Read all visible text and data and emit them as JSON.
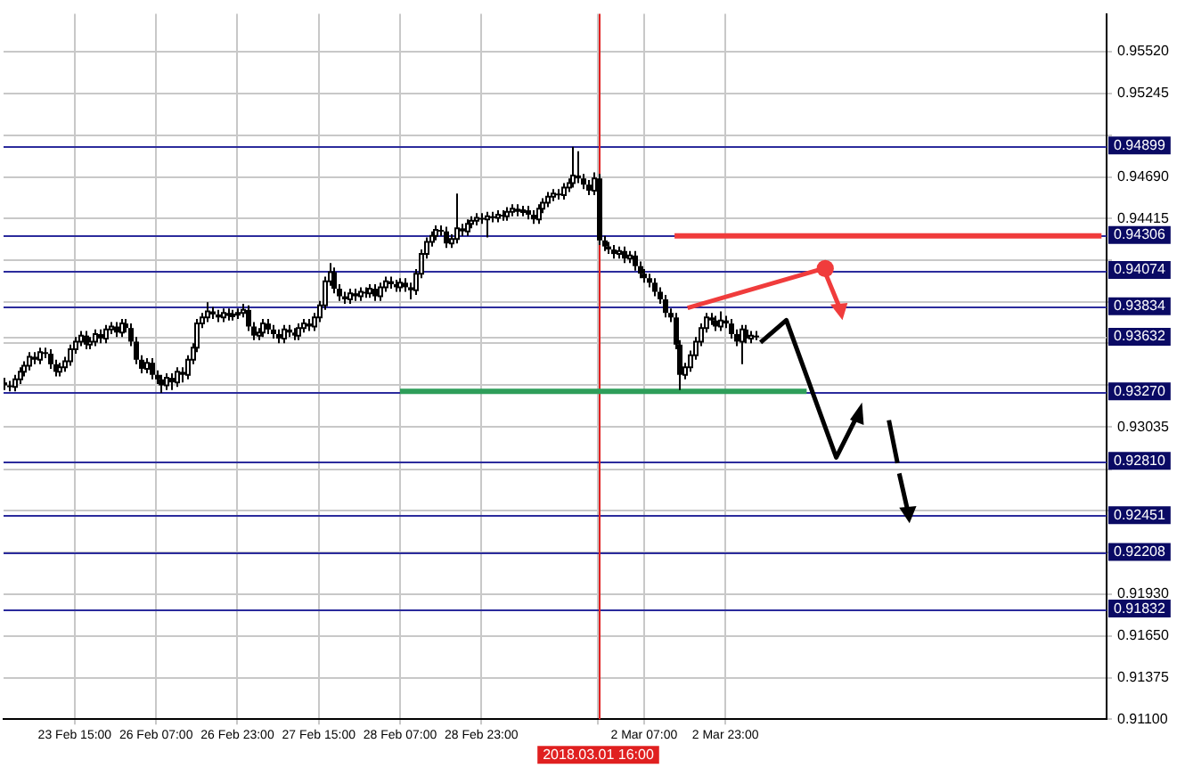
{
  "chart_data": {
    "type": "candlestick",
    "categories": [
      null,
      null,
      null,
      null,
      null,
      null,
      null,
      null,
      null,
      null,
      null,
      null,
      null,
      null,
      "23 Feb 15:00",
      null,
      null,
      null,
      null,
      null,
      null,
      null,
      null,
      null,
      null,
      null,
      null,
      null,
      null,
      null,
      "26 Feb 07:00",
      null,
      null,
      null,
      null,
      null,
      null,
      null,
      null,
      null,
      null,
      null,
      null,
      null,
      null,
      null,
      "26 Feb 23:00",
      null,
      null,
      null,
      null,
      null,
      null,
      null,
      null,
      null,
      null,
      null,
      null,
      null,
      null,
      null,
      "27 Feb 15:00",
      null,
      null,
      null,
      null,
      null,
      null,
      null,
      null,
      null,
      null,
      null,
      null,
      null,
      null,
      null,
      "28 Feb 07:00",
      null,
      null,
      null,
      null,
      null,
      null,
      null,
      null,
      null,
      null,
      null,
      null,
      null,
      null,
      null,
      "28 Feb 23:00",
      null,
      null,
      null,
      null,
      null,
      null,
      null,
      null,
      null,
      null,
      null,
      null,
      null,
      null,
      null,
      null,
      null,
      null,
      null,
      null,
      null,
      null,
      "2018.03.01 16:00",
      null,
      null,
      null,
      null,
      null,
      null,
      null,
      null,
      "2 Mar 07:00",
      null,
      null,
      null,
      null,
      null,
      null,
      null,
      null,
      null,
      null,
      null,
      null,
      null,
      null,
      null,
      "2 Mar 23:00",
      null,
      null,
      null,
      null,
      null,
      null,
      null,
      null,
      null,
      null,
      null,
      null,
      null,
      null,
      null,
      null,
      null,
      null,
      null,
      null,
      null,
      null,
      null,
      null,
      null,
      null,
      null,
      null,
      null,
      null,
      null,
      null,
      null,
      null,
      null,
      null,
      null,
      null,
      null,
      null,
      null,
      null,
      null,
      null,
      null,
      null,
      null,
      null,
      null,
      null,
      null,
      null,
      null,
      null,
      null,
      null,
      null,
      null,
      null,
      null,
      null,
      null,
      null,
      null,
      null,
      null,
      null,
      null,
      null,
      null,
      null,
      null,
      null,
      null,
      null
    ],
    "ohlc": [
      [
        0.9333,
        0.9336,
        0.9328,
        0.9331
      ],
      [
        0.9331,
        0.9334,
        0.9327,
        0.933
      ],
      [
        0.933,
        0.9338,
        0.9327,
        0.9335
      ],
      [
        0.9335,
        0.9343,
        0.9332,
        0.934
      ],
      [
        0.934,
        0.9347,
        0.9337,
        0.9344
      ],
      [
        0.9344,
        0.9353,
        0.9341,
        0.935
      ],
      [
        0.935,
        0.9353,
        0.9345,
        0.9348
      ],
      [
        0.9348,
        0.9356,
        0.9345,
        0.9353
      ],
      [
        0.9353,
        0.9356,
        0.9349,
        0.9352
      ],
      [
        0.9352,
        0.9355,
        0.9342,
        0.9345
      ],
      [
        0.9345,
        0.9348,
        0.9337,
        0.934
      ],
      [
        0.934,
        0.9346,
        0.9337,
        0.9343
      ],
      [
        0.9343,
        0.935,
        0.934,
        0.9347
      ],
      [
        0.9347,
        0.9358,
        0.9344,
        0.9355
      ],
      [
        0.9355,
        0.9363,
        0.9352,
        0.936
      ],
      [
        0.936,
        0.9367,
        0.9357,
        0.9364
      ],
      [
        0.9364,
        0.9367,
        0.9355,
        0.9358
      ],
      [
        0.9358,
        0.9363,
        0.9355,
        0.936
      ],
      [
        0.936,
        0.9368,
        0.9357,
        0.9365
      ],
      [
        0.9365,
        0.9368,
        0.9359,
        0.9362
      ],
      [
        0.9362,
        0.9371,
        0.9359,
        0.9368
      ],
      [
        0.9368,
        0.9373,
        0.9365,
        0.937
      ],
      [
        0.937,
        0.9373,
        0.9363,
        0.9366
      ],
      [
        0.9366,
        0.9375,
        0.9363,
        0.9372
      ],
      [
        0.9372,
        0.9375,
        0.9366,
        0.9369
      ],
      [
        0.9369,
        0.9372,
        0.9357,
        0.936
      ],
      [
        0.936,
        0.9363,
        0.9345,
        0.9348
      ],
      [
        0.9348,
        0.9351,
        0.9339,
        0.9342
      ],
      [
        0.9342,
        0.9349,
        0.9339,
        0.9346
      ],
      [
        0.9346,
        0.9349,
        0.9335,
        0.9338
      ],
      [
        0.9338,
        0.9341,
        0.9332,
        0.9335
      ],
      [
        0.9335,
        0.9338,
        0.9326,
        0.9331
      ],
      [
        0.9331,
        0.9339,
        0.9328,
        0.9336
      ],
      [
        0.9336,
        0.9339,
        0.9328,
        0.9333
      ],
      [
        0.9333,
        0.9343,
        0.933,
        0.934
      ],
      [
        0.934,
        0.9343,
        0.9333,
        0.9338
      ],
      [
        0.9338,
        0.9351,
        0.9335,
        0.9348
      ],
      [
        0.9348,
        0.9359,
        0.9345,
        0.9356
      ],
      [
        0.9356,
        0.9375,
        0.9353,
        0.9372
      ],
      [
        0.9372,
        0.9379,
        0.9369,
        0.9376
      ],
      [
        0.9376,
        0.9386,
        0.9373,
        0.938
      ],
      [
        0.938,
        0.9383,
        0.9375,
        0.9378
      ],
      [
        0.9378,
        0.9381,
        0.9373,
        0.9376
      ],
      [
        0.9376,
        0.9382,
        0.9373,
        0.9379
      ],
      [
        0.9379,
        0.9382,
        0.9374,
        0.9377
      ],
      [
        0.9377,
        0.9381,
        0.9374,
        0.9378
      ],
      [
        0.9378,
        0.9382,
        0.9375,
        0.9379
      ],
      [
        0.9379,
        0.9385,
        0.9376,
        0.9381
      ],
      [
        0.9381,
        0.9384,
        0.9367,
        0.937
      ],
      [
        0.937,
        0.9373,
        0.9361,
        0.9364
      ],
      [
        0.9364,
        0.9369,
        0.9361,
        0.9366
      ],
      [
        0.9366,
        0.9375,
        0.9363,
        0.9372
      ],
      [
        0.9372,
        0.9375,
        0.9365,
        0.9368
      ],
      [
        0.9368,
        0.9371,
        0.9362,
        0.9365
      ],
      [
        0.9365,
        0.9368,
        0.9359,
        0.9362
      ],
      [
        0.9362,
        0.9371,
        0.9359,
        0.9368
      ],
      [
        0.9368,
        0.9371,
        0.9363,
        0.9366
      ],
      [
        0.9366,
        0.9369,
        0.9361,
        0.9364
      ],
      [
        0.9364,
        0.9372,
        0.9361,
        0.9369
      ],
      [
        0.9369,
        0.9375,
        0.9366,
        0.9372
      ],
      [
        0.9372,
        0.9375,
        0.9367,
        0.937
      ],
      [
        0.937,
        0.9379,
        0.9367,
        0.9376
      ],
      [
        0.9376,
        0.9387,
        0.9373,
        0.9384
      ],
      [
        0.9384,
        0.9403,
        0.9381,
        0.94
      ],
      [
        0.94,
        0.9412,
        0.9397,
        0.9406
      ],
      [
        0.9406,
        0.9409,
        0.9392,
        0.9395
      ],
      [
        0.9395,
        0.9398,
        0.9387,
        0.939
      ],
      [
        0.939,
        0.9393,
        0.9385,
        0.9388
      ],
      [
        0.9388,
        0.9395,
        0.9385,
        0.9392
      ],
      [
        0.9392,
        0.9395,
        0.9387,
        0.939
      ],
      [
        0.939,
        0.9396,
        0.9387,
        0.9393
      ],
      [
        0.9393,
        0.9396,
        0.9389,
        0.9392
      ],
      [
        0.9392,
        0.9398,
        0.9389,
        0.9395
      ],
      [
        0.9395,
        0.9398,
        0.9387,
        0.939
      ],
      [
        0.939,
        0.9399,
        0.9387,
        0.9396
      ],
      [
        0.9396,
        0.9403,
        0.9393,
        0.94
      ],
      [
        0.94,
        0.9403,
        0.9395,
        0.9398
      ],
      [
        0.9398,
        0.9401,
        0.9393,
        0.9396
      ],
      [
        0.9396,
        0.9402,
        0.9393,
        0.9399
      ],
      [
        0.9399,
        0.9402,
        0.9393,
        0.9396
      ],
      [
        0.9396,
        0.9399,
        0.9388,
        0.9394
      ],
      [
        0.9394,
        0.9408,
        0.9391,
        0.9405
      ],
      [
        0.9405,
        0.9421,
        0.9402,
        0.9418
      ],
      [
        0.9418,
        0.9429,
        0.9415,
        0.9426
      ],
      [
        0.9426,
        0.9433,
        0.9423,
        0.943
      ],
      [
        0.943,
        0.9437,
        0.9427,
        0.9434
      ],
      [
        0.9434,
        0.9437,
        0.943,
        0.9433
      ],
      [
        0.9433,
        0.9436,
        0.9422,
        0.9425
      ],
      [
        0.9425,
        0.9431,
        0.9422,
        0.9428
      ],
      [
        0.9428,
        0.9458,
        0.9425,
        0.9435
      ],
      [
        0.9435,
        0.9438,
        0.943,
        0.9433
      ],
      [
        0.9433,
        0.9441,
        0.943,
        0.9438
      ],
      [
        0.9438,
        0.9443,
        0.9435,
        0.944
      ],
      [
        0.944,
        0.9445,
        0.9437,
        0.9442
      ],
      [
        0.9442,
        0.9445,
        0.9438,
        0.9441
      ],
      [
        0.9441,
        0.9446,
        0.9429,
        0.9443
      ],
      [
        0.9443,
        0.9446,
        0.9439,
        0.9442
      ],
      [
        0.9442,
        0.9447,
        0.9439,
        0.9444
      ],
      [
        0.9444,
        0.9447,
        0.944,
        0.9443
      ],
      [
        0.9443,
        0.9449,
        0.944,
        0.9446
      ],
      [
        0.9446,
        0.9451,
        0.9443,
        0.9448
      ],
      [
        0.9448,
        0.9451,
        0.9443,
        0.9446
      ],
      [
        0.9446,
        0.945,
        0.9443,
        0.9447
      ],
      [
        0.9447,
        0.945,
        0.9441,
        0.9444
      ],
      [
        0.9444,
        0.9447,
        0.9438,
        0.9441
      ],
      [
        0.9441,
        0.9451,
        0.9438,
        0.9448
      ],
      [
        0.9448,
        0.9455,
        0.9445,
        0.9452
      ],
      [
        0.9452,
        0.9459,
        0.9449,
        0.9456
      ],
      [
        0.9456,
        0.9461,
        0.9453,
        0.9458
      ],
      [
        0.9458,
        0.9461,
        0.9454,
        0.9457
      ],
      [
        0.9457,
        0.9465,
        0.9454,
        0.9462
      ],
      [
        0.9462,
        0.9468,
        0.9459,
        0.9465
      ],
      [
        0.9465,
        0.9489,
        0.9462,
        0.947
      ],
      [
        0.947,
        0.9486,
        0.9465,
        0.9468
      ],
      [
        0.9468,
        0.9471,
        0.9461,
        0.9464
      ],
      [
        0.9464,
        0.9467,
        0.9457,
        0.946
      ],
      [
        0.946,
        0.9472,
        0.9457,
        0.9468
      ],
      [
        0.9468,
        0.9471,
        0.9424,
        0.9427
      ],
      [
        0.9427,
        0.943,
        0.942,
        0.9423
      ],
      [
        0.9423,
        0.9426,
        0.9418,
        0.9421
      ],
      [
        0.9421,
        0.9424,
        0.9415,
        0.9418
      ],
      [
        0.9418,
        0.9423,
        0.9415,
        0.942
      ],
      [
        0.942,
        0.9423,
        0.9412,
        0.9415
      ],
      [
        0.9415,
        0.942,
        0.9412,
        0.9417
      ],
      [
        0.9417,
        0.942,
        0.9407,
        0.941
      ],
      [
        0.941,
        0.9413,
        0.9402,
        0.9405
      ],
      [
        0.9405,
        0.9408,
        0.9399,
        0.9402
      ],
      [
        0.9402,
        0.9405,
        0.9396,
        0.9399
      ],
      [
        0.9399,
        0.9402,
        0.939,
        0.9393
      ],
      [
        0.9393,
        0.9396,
        0.9385,
        0.9388
      ],
      [
        0.9388,
        0.9391,
        0.9376,
        0.9379
      ],
      [
        0.9379,
        0.9382,
        0.9373,
        0.9376
      ],
      [
        0.9376,
        0.9379,
        0.9355,
        0.9358
      ],
      [
        0.9358,
        0.9361,
        0.9328,
        0.9338
      ],
      [
        0.9338,
        0.9346,
        0.9335,
        0.9343
      ],
      [
        0.9343,
        0.9354,
        0.934,
        0.9351
      ],
      [
        0.9351,
        0.9363,
        0.9348,
        0.936
      ],
      [
        0.936,
        0.9372,
        0.9357,
        0.9369
      ],
      [
        0.9369,
        0.9379,
        0.9366,
        0.9376
      ],
      [
        0.9376,
        0.9379,
        0.9371,
        0.9374
      ],
      [
        0.9374,
        0.9377,
        0.9367,
        0.937
      ],
      [
        0.937,
        0.938,
        0.9367,
        0.9374
      ],
      [
        0.9374,
        0.9377,
        0.9369,
        0.9372
      ],
      [
        0.9372,
        0.9375,
        0.9362,
        0.9365
      ],
      [
        0.9365,
        0.9368,
        0.9357,
        0.936
      ],
      [
        0.936,
        0.9371,
        0.9345,
        0.9368
      ],
      [
        0.9368,
        0.9371,
        0.9359,
        0.9362
      ],
      [
        0.9362,
        0.9367,
        0.9359,
        0.9364
      ],
      [
        0.9364,
        0.9367,
        0.9361,
        0.93632
      ],
      null,
      null,
      null,
      null,
      null,
      null,
      null,
      null,
      null,
      null,
      null,
      null,
      null,
      null,
      null,
      null,
      null,
      null,
      null,
      null,
      null,
      null,
      null,
      null,
      null,
      null,
      null,
      null,
      null,
      null,
      null,
      null,
      null,
      null,
      null,
      null,
      null,
      null,
      null,
      null,
      null,
      null,
      null,
      null,
      null,
      null,
      null,
      null,
      null,
      null,
      null,
      null,
      null,
      null,
      null,
      null,
      null,
      null,
      null,
      null,
      null,
      null,
      null,
      null,
      null,
      null,
      null,
      null,
      null
    ],
    "series": [
      {
        "type": "line",
        "color": "#f03c3c",
        "values": [
          null,
          null,
          null,
          null,
          null,
          null,
          null,
          null,
          null,
          null,
          null,
          null,
          null,
          null,
          null,
          null,
          null,
          null,
          null,
          null,
          null,
          null,
          null,
          null,
          null,
          null,
          null,
          null,
          null,
          null,
          null,
          null,
          null,
          null,
          null,
          null,
          null,
          null,
          null,
          null,
          null,
          null,
          null,
          null,
          null,
          null,
          null,
          null,
          null,
          null,
          null,
          null,
          null,
          null,
          null,
          null,
          null,
          null,
          null,
          null,
          null,
          null,
          null,
          null,
          null,
          null,
          null,
          null,
          null,
          null,
          null,
          null,
          null,
          null,
          null,
          null,
          null,
          null,
          null,
          null,
          null,
          null,
          null,
          null,
          null,
          null,
          null,
          null,
          null,
          null,
          null,
          null,
          null,
          null,
          null,
          null,
          null,
          null,
          null,
          null,
          null,
          null,
          null,
          null,
          null,
          null,
          null,
          null,
          null,
          null,
          null,
          null,
          null,
          null,
          null,
          null,
          null,
          null,
          null,
          null,
          null,
          null,
          null,
          null,
          null,
          null,
          null,
          null,
          null,
          null,
          null,
          null,
          0.943,
          0.943,
          0.943,
          0.943,
          0.943,
          0.943,
          0.943,
          0.943,
          0.943,
          0.943,
          0.943,
          0.943,
          0.943,
          0.943,
          0.943,
          0.943,
          0.943,
          0.943,
          0.943,
          0.943,
          0.943,
          0.943,
          0.943,
          0.943,
          0.943,
          0.943,
          0.943,
          0.943,
          0.943,
          0.943,
          0.943,
          0.943,
          0.943,
          0.943,
          0.943,
          0.943,
          0.943,
          0.943,
          0.943,
          0.943,
          0.943,
          0.943,
          0.943,
          0.943,
          0.943,
          0.943,
          0.943,
          0.943,
          0.943,
          0.943,
          0.943,
          0.943,
          0.943,
          0.943,
          0.943,
          0.943,
          0.943,
          0.943,
          0.943,
          0.943,
          0.943,
          0.943,
          0.943,
          0.943,
          0.943,
          0.943,
          0.943,
          0.943,
          0.943,
          0.943,
          0.943,
          0.943,
          0.943,
          0.943,
          0.943,
          0.943,
          0.943,
          0.943,
          0.943,
          0.943,
          0.943,
          0.943,
          0.943,
          0.943,
          0.943,
          null
        ]
      },
      {
        "type": "line",
        "color": "#2e9e5a",
        "values": [
          null,
          null,
          null,
          null,
          null,
          null,
          null,
          null,
          null,
          null,
          null,
          null,
          null,
          null,
          null,
          null,
          null,
          null,
          null,
          null,
          null,
          null,
          null,
          null,
          null,
          null,
          null,
          null,
          null,
          null,
          null,
          null,
          null,
          null,
          null,
          null,
          null,
          null,
          null,
          null,
          null,
          null,
          null,
          null,
          null,
          null,
          null,
          null,
          null,
          null,
          null,
          null,
          null,
          null,
          null,
          null,
          null,
          null,
          null,
          null,
          null,
          null,
          null,
          null,
          null,
          null,
          null,
          null,
          null,
          null,
          null,
          null,
          null,
          null,
          null,
          null,
          null,
          null,
          0.9327,
          0.9327,
          0.9327,
          0.9327,
          0.9327,
          0.9327,
          0.9327,
          0.9327,
          0.9327,
          0.9327,
          0.9327,
          0.9327,
          0.9327,
          0.9327,
          0.9327,
          0.9327,
          0.9327,
          0.9327,
          0.9327,
          0.9327,
          0.9327,
          0.9327,
          0.9327,
          0.9327,
          0.9327,
          0.9327,
          0.9327,
          0.9327,
          0.9327,
          0.9327,
          0.9327,
          0.9327,
          0.9327,
          0.9327,
          0.9327,
          0.9327,
          0.9327,
          0.9327,
          0.9327,
          0.9327,
          0.9327,
          0.9327,
          0.9327,
          0.9327,
          0.9327,
          0.9327,
          0.9327,
          0.9327,
          0.9327,
          0.9327,
          0.9327,
          0.9327,
          0.9327,
          0.9327,
          0.9327,
          0.9327,
          0.9327,
          0.9327,
          0.9327,
          0.9327,
          0.9327,
          0.9327,
          0.9327,
          0.9327,
          0.9327,
          0.9327,
          0.9327,
          0.9327,
          0.9327,
          0.9327,
          0.9327,
          0.9327,
          0.9327,
          0.9327,
          0.9327,
          0.9327,
          0.9327,
          0.9327,
          0.9327,
          0.9327,
          0.9327,
          null,
          null,
          null,
          null,
          null,
          null,
          null,
          null,
          null,
          null,
          null,
          null,
          null,
          null,
          null,
          null,
          null,
          null,
          null,
          null,
          null,
          null,
          null,
          null,
          null,
          null,
          null,
          null,
          null,
          null,
          null,
          null,
          null,
          null,
          null,
          null,
          null,
          null,
          null,
          null,
          null,
          null,
          null,
          null,
          null,
          null,
          null,
          null,
          null,
          null,
          null,
          null,
          null,
          null,
          null,
          null,
          null,
          null,
          null
        ]
      }
    ],
    "ylim": [
      0.911,
      0.9577
    ],
    "yticks": [
      {
        "value": 0.911,
        "label": "0.91100"
      },
      {
        "value": 0.91375,
        "label": "0.91375"
      },
      {
        "value": 0.9165,
        "label": "0.91650"
      },
      {
        "value": 0.9193,
        "label": "0.91930"
      },
      {
        "value": 0.92205,
        "label": null
      },
      {
        "value": 0.9248,
        "label": null
      },
      {
        "value": 0.92755,
        "label": null
      },
      {
        "value": 0.93035,
        "label": "0.93035"
      },
      {
        "value": 0.93315,
        "label": null
      },
      {
        "value": 0.9359,
        "label": null
      },
      {
        "value": 0.93865,
        "label": null
      },
      {
        "value": 0.9414,
        "label": null
      },
      {
        "value": 0.94415,
        "label": "0.94415"
      },
      {
        "value": 0.9469,
        "label": "0.94690"
      },
      {
        "value": 0.94965,
        "label": null
      },
      {
        "value": 0.95245,
        "label": "0.95245"
      },
      {
        "value": 0.9552,
        "label": "0.95520"
      }
    ],
    "grid": true,
    "ref_lines": [
      {
        "axis": "y",
        "value": 0.94899,
        "label": "0.94899",
        "color": "#2b2b9c"
      },
      {
        "axis": "y",
        "value": 0.94306,
        "label": "0.94306",
        "color": "#2b2b9c"
      },
      {
        "axis": "y",
        "value": 0.94074,
        "label": "0.94074",
        "color": "#2b2b9c"
      },
      {
        "axis": "y",
        "value": 0.93834,
        "label": "0.93834",
        "color": "#2b2b9c"
      },
      {
        "axis": "y",
        "value": 0.93632,
        "label": "0.93632",
        "color": "#c8c8c8"
      },
      {
        "axis": "y",
        "value": 0.9327,
        "label": "0.93270",
        "color": "#2b2b9c"
      },
      {
        "axis": "y",
        "value": 0.9281,
        "label": "0.92810",
        "color": "#2b2b9c"
      },
      {
        "axis": "y",
        "value": 0.92451,
        "label": "0.92451",
        "color": "#2b2b9c"
      },
      {
        "axis": "y",
        "value": 0.92208,
        "label": "0.92208",
        "color": "#2b2b9c"
      },
      {
        "axis": "y",
        "value": 0.91832,
        "label": "0.91832",
        "color": "#2b2b9c"
      },
      {
        "axis": "x",
        "value": "2018.03.01 16:00",
        "color": "#e02020"
      }
    ]
  }
}
